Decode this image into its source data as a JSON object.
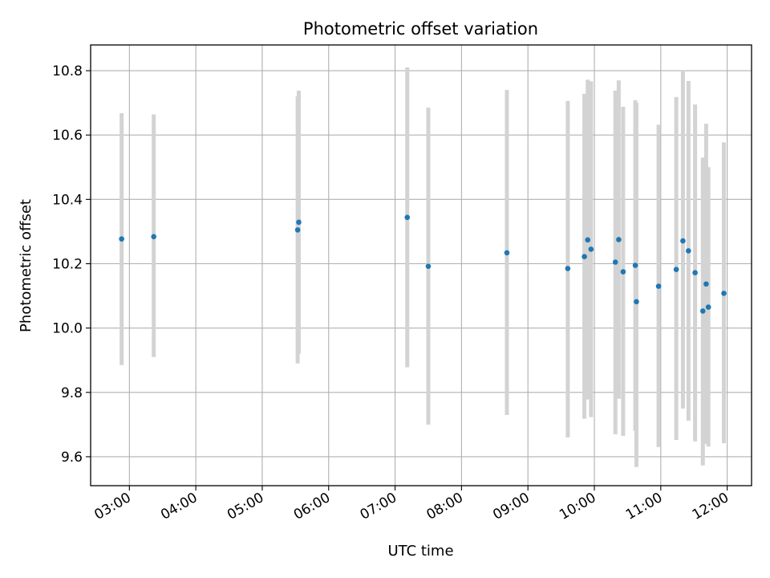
{
  "chart_data": {
    "type": "scatter",
    "title": "Photometric offset variation",
    "xlabel": "UTC time",
    "ylabel": "Photometric offset",
    "ylim": [
      9.51,
      10.88
    ],
    "xlim": [
      "02:25",
      "12:22"
    ],
    "grid": true,
    "x_ticks": [
      "03:00",
      "04:00",
      "05:00",
      "06:00",
      "07:00",
      "08:00",
      "09:00",
      "10:00",
      "11:00",
      "12:00"
    ],
    "y_ticks": [
      "9.6",
      "9.8",
      "10.0",
      "10.2",
      "10.4",
      "10.6",
      "10.8"
    ],
    "colors": {
      "point": "#1f77b4",
      "error_bar": "#d3d3d3",
      "grid": "#b0b0b0"
    },
    "points": [
      {
        "x": "02:53",
        "y": 10.277,
        "err_low": 9.885,
        "err_high": 10.668
      },
      {
        "x": "03:22",
        "y": 10.284,
        "err_low": 9.91,
        "err_high": 10.664
      },
      {
        "x": "05:32",
        "y": 10.305,
        "err_low": 9.89,
        "err_high": 10.72
      },
      {
        "x": "05:33",
        "y": 10.329,
        "err_low": 9.92,
        "err_high": 10.738
      },
      {
        "x": "07:11",
        "y": 10.344,
        "err_low": 9.878,
        "err_high": 10.81
      },
      {
        "x": "07:30",
        "y": 10.192,
        "err_low": 9.7,
        "err_high": 10.685
      },
      {
        "x": "08:41",
        "y": 10.234,
        "err_low": 9.73,
        "err_high": 10.74
      },
      {
        "x": "09:36",
        "y": 10.185,
        "err_low": 9.66,
        "err_high": 10.706
      },
      {
        "x": "09:51",
        "y": 10.222,
        "err_low": 9.718,
        "err_high": 10.728
      },
      {
        "x": "09:54",
        "y": 10.274,
        "err_low": 9.778,
        "err_high": 10.772
      },
      {
        "x": "09:57",
        "y": 10.245,
        "err_low": 9.723,
        "err_high": 10.767
      },
      {
        "x": "10:19",
        "y": 10.205,
        "err_low": 9.67,
        "err_high": 10.738
      },
      {
        "x": "10:22",
        "y": 10.275,
        "err_low": 9.78,
        "err_high": 10.77
      },
      {
        "x": "10:26",
        "y": 10.175,
        "err_low": 9.665,
        "err_high": 10.688
      },
      {
        "x": "10:37",
        "y": 10.195,
        "err_low": 9.68,
        "err_high": 10.708
      },
      {
        "x": "10:38",
        "y": 10.082,
        "err_low": 9.568,
        "err_high": 10.7
      },
      {
        "x": "10:58",
        "y": 10.13,
        "err_low": 9.63,
        "err_high": 10.632
      },
      {
        "x": "11:14",
        "y": 10.182,
        "err_low": 9.652,
        "err_high": 10.718
      },
      {
        "x": "11:20",
        "y": 10.271,
        "err_low": 9.75,
        "err_high": 10.8
      },
      {
        "x": "11:25",
        "y": 10.24,
        "err_low": 9.712,
        "err_high": 10.768
      },
      {
        "x": "11:31",
        "y": 10.172,
        "err_low": 9.648,
        "err_high": 10.695
      },
      {
        "x": "11:38",
        "y": 10.053,
        "err_low": 9.573,
        "err_high": 10.53
      },
      {
        "x": "11:41",
        "y": 10.137,
        "err_low": 9.64,
        "err_high": 10.635
      },
      {
        "x": "11:43",
        "y": 10.065,
        "err_low": 9.632,
        "err_high": 10.5
      },
      {
        "x": "11:57",
        "y": 10.108,
        "err_low": 9.642,
        "err_high": 10.577
      }
    ]
  }
}
